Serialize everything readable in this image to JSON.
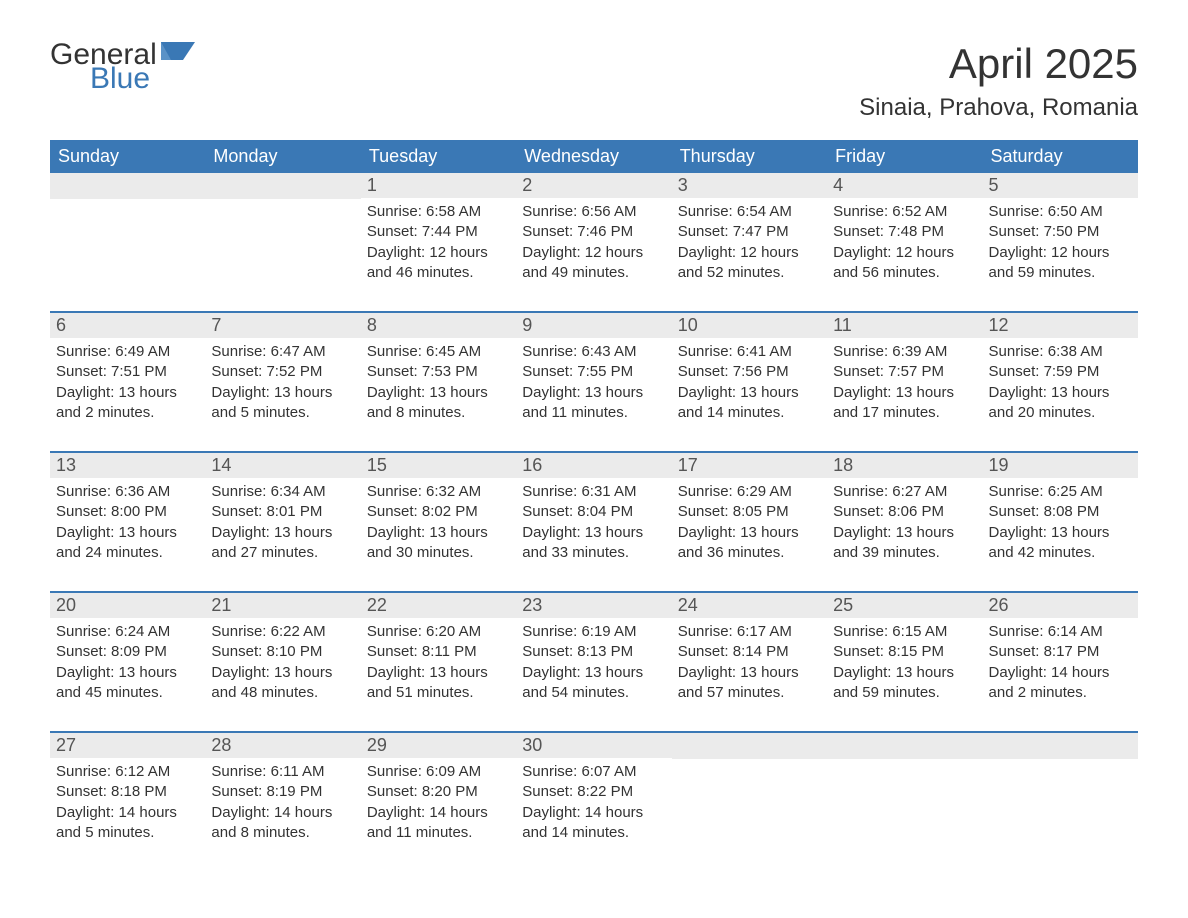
{
  "logo": {
    "line1": "General",
    "line2": "Blue",
    "flag_color": "#3a78b5"
  },
  "title": "April 2025",
  "location": "Sinaia, Prahova, Romania",
  "colors": {
    "header_bg": "#3a78b5",
    "header_text": "#ffffff",
    "daynum_bg": "#ebebeb",
    "body_text": "#333333",
    "row_border": "#3a78b5",
    "page_bg": "#ffffff"
  },
  "fonts": {
    "title_pt": 42,
    "location_pt": 24,
    "th_pt": 18,
    "daynum_pt": 18,
    "body_pt": 15
  },
  "layout": {
    "cols": 7,
    "rows": 5,
    "type": "calendar"
  },
  "weekday_labels": [
    "Sunday",
    "Monday",
    "Tuesday",
    "Wednesday",
    "Thursday",
    "Friday",
    "Saturday"
  ],
  "weeks": [
    [
      {
        "n": "",
        "sunrise": "",
        "sunset": "",
        "daylight": ""
      },
      {
        "n": "",
        "sunrise": "",
        "sunset": "",
        "daylight": ""
      },
      {
        "n": "1",
        "sunrise": "Sunrise: 6:58 AM",
        "sunset": "Sunset: 7:44 PM",
        "daylight": "Daylight: 12 hours and 46 minutes."
      },
      {
        "n": "2",
        "sunrise": "Sunrise: 6:56 AM",
        "sunset": "Sunset: 7:46 PM",
        "daylight": "Daylight: 12 hours and 49 minutes."
      },
      {
        "n": "3",
        "sunrise": "Sunrise: 6:54 AM",
        "sunset": "Sunset: 7:47 PM",
        "daylight": "Daylight: 12 hours and 52 minutes."
      },
      {
        "n": "4",
        "sunrise": "Sunrise: 6:52 AM",
        "sunset": "Sunset: 7:48 PM",
        "daylight": "Daylight: 12 hours and 56 minutes."
      },
      {
        "n": "5",
        "sunrise": "Sunrise: 6:50 AM",
        "sunset": "Sunset: 7:50 PM",
        "daylight": "Daylight: 12 hours and 59 minutes."
      }
    ],
    [
      {
        "n": "6",
        "sunrise": "Sunrise: 6:49 AM",
        "sunset": "Sunset: 7:51 PM",
        "daylight": "Daylight: 13 hours and 2 minutes."
      },
      {
        "n": "7",
        "sunrise": "Sunrise: 6:47 AM",
        "sunset": "Sunset: 7:52 PM",
        "daylight": "Daylight: 13 hours and 5 minutes."
      },
      {
        "n": "8",
        "sunrise": "Sunrise: 6:45 AM",
        "sunset": "Sunset: 7:53 PM",
        "daylight": "Daylight: 13 hours and 8 minutes."
      },
      {
        "n": "9",
        "sunrise": "Sunrise: 6:43 AM",
        "sunset": "Sunset: 7:55 PM",
        "daylight": "Daylight: 13 hours and 11 minutes."
      },
      {
        "n": "10",
        "sunrise": "Sunrise: 6:41 AM",
        "sunset": "Sunset: 7:56 PM",
        "daylight": "Daylight: 13 hours and 14 minutes."
      },
      {
        "n": "11",
        "sunrise": "Sunrise: 6:39 AM",
        "sunset": "Sunset: 7:57 PM",
        "daylight": "Daylight: 13 hours and 17 minutes."
      },
      {
        "n": "12",
        "sunrise": "Sunrise: 6:38 AM",
        "sunset": "Sunset: 7:59 PM",
        "daylight": "Daylight: 13 hours and 20 minutes."
      }
    ],
    [
      {
        "n": "13",
        "sunrise": "Sunrise: 6:36 AM",
        "sunset": "Sunset: 8:00 PM",
        "daylight": "Daylight: 13 hours and 24 minutes."
      },
      {
        "n": "14",
        "sunrise": "Sunrise: 6:34 AM",
        "sunset": "Sunset: 8:01 PM",
        "daylight": "Daylight: 13 hours and 27 minutes."
      },
      {
        "n": "15",
        "sunrise": "Sunrise: 6:32 AM",
        "sunset": "Sunset: 8:02 PM",
        "daylight": "Daylight: 13 hours and 30 minutes."
      },
      {
        "n": "16",
        "sunrise": "Sunrise: 6:31 AM",
        "sunset": "Sunset: 8:04 PM",
        "daylight": "Daylight: 13 hours and 33 minutes."
      },
      {
        "n": "17",
        "sunrise": "Sunrise: 6:29 AM",
        "sunset": "Sunset: 8:05 PM",
        "daylight": "Daylight: 13 hours and 36 minutes."
      },
      {
        "n": "18",
        "sunrise": "Sunrise: 6:27 AM",
        "sunset": "Sunset: 8:06 PM",
        "daylight": "Daylight: 13 hours and 39 minutes."
      },
      {
        "n": "19",
        "sunrise": "Sunrise: 6:25 AM",
        "sunset": "Sunset: 8:08 PM",
        "daylight": "Daylight: 13 hours and 42 minutes."
      }
    ],
    [
      {
        "n": "20",
        "sunrise": "Sunrise: 6:24 AM",
        "sunset": "Sunset: 8:09 PM",
        "daylight": "Daylight: 13 hours and 45 minutes."
      },
      {
        "n": "21",
        "sunrise": "Sunrise: 6:22 AM",
        "sunset": "Sunset: 8:10 PM",
        "daylight": "Daylight: 13 hours and 48 minutes."
      },
      {
        "n": "22",
        "sunrise": "Sunrise: 6:20 AM",
        "sunset": "Sunset: 8:11 PM",
        "daylight": "Daylight: 13 hours and 51 minutes."
      },
      {
        "n": "23",
        "sunrise": "Sunrise: 6:19 AM",
        "sunset": "Sunset: 8:13 PM",
        "daylight": "Daylight: 13 hours and 54 minutes."
      },
      {
        "n": "24",
        "sunrise": "Sunrise: 6:17 AM",
        "sunset": "Sunset: 8:14 PM",
        "daylight": "Daylight: 13 hours and 57 minutes."
      },
      {
        "n": "25",
        "sunrise": "Sunrise: 6:15 AM",
        "sunset": "Sunset: 8:15 PM",
        "daylight": "Daylight: 13 hours and 59 minutes."
      },
      {
        "n": "26",
        "sunrise": "Sunrise: 6:14 AM",
        "sunset": "Sunset: 8:17 PM",
        "daylight": "Daylight: 14 hours and 2 minutes."
      }
    ],
    [
      {
        "n": "27",
        "sunrise": "Sunrise: 6:12 AM",
        "sunset": "Sunset: 8:18 PM",
        "daylight": "Daylight: 14 hours and 5 minutes."
      },
      {
        "n": "28",
        "sunrise": "Sunrise: 6:11 AM",
        "sunset": "Sunset: 8:19 PM",
        "daylight": "Daylight: 14 hours and 8 minutes."
      },
      {
        "n": "29",
        "sunrise": "Sunrise: 6:09 AM",
        "sunset": "Sunset: 8:20 PM",
        "daylight": "Daylight: 14 hours and 11 minutes."
      },
      {
        "n": "30",
        "sunrise": "Sunrise: 6:07 AM",
        "sunset": "Sunset: 8:22 PM",
        "daylight": "Daylight: 14 hours and 14 minutes."
      },
      {
        "n": "",
        "sunrise": "",
        "sunset": "",
        "daylight": ""
      },
      {
        "n": "",
        "sunrise": "",
        "sunset": "",
        "daylight": ""
      },
      {
        "n": "",
        "sunrise": "",
        "sunset": "",
        "daylight": ""
      }
    ]
  ]
}
